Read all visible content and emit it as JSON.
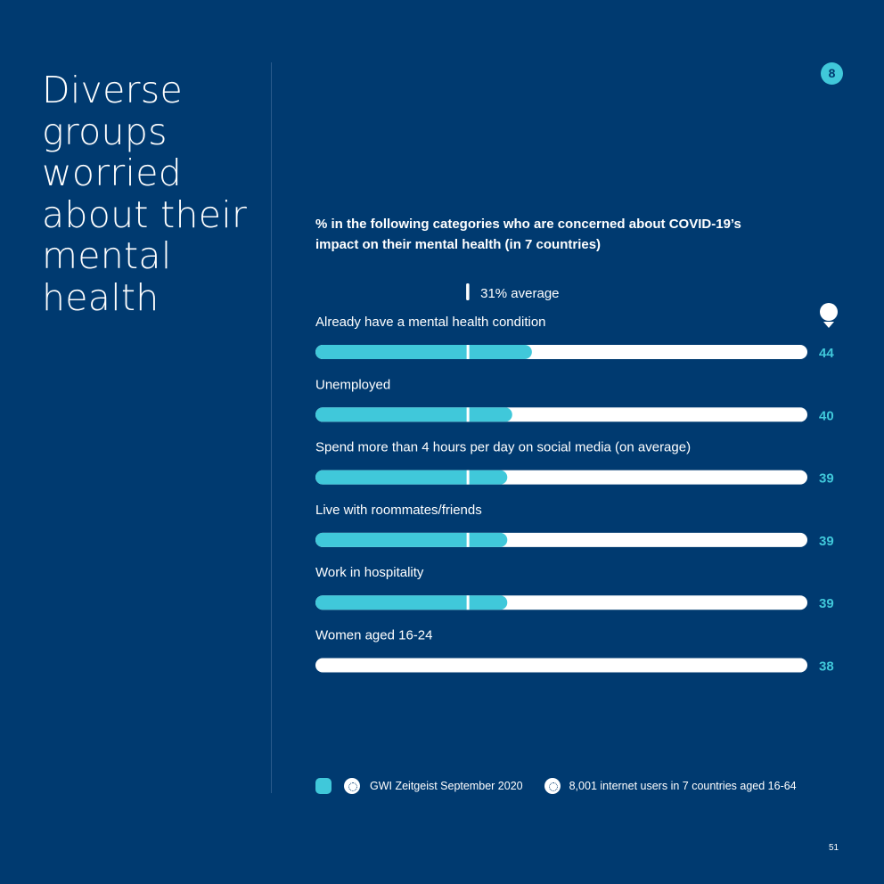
{
  "headline": [
    "Diverse",
    "groups",
    "worried",
    "about their",
    "mental",
    "health"
  ],
  "page_badge": "8",
  "chart_title": "% in the following categories who are concerned about COVID-19’s impact on their mental health (in 7 countries)",
  "average_label": "31% average",
  "chart_data": {
    "type": "bar",
    "orientation": "horizontal",
    "categories": [
      "Already have a mental health condition",
      "Unemployed",
      "Spend more than 4 hours per day on social media (on average)",
      "Live with roommates/friends",
      "Work in hospitality",
      "Women aged 16-24"
    ],
    "values": [
      44,
      40,
      39,
      39,
      39,
      38
    ],
    "average": 31,
    "xlim": [
      0,
      100
    ],
    "grid": false,
    "legend": "none",
    "colors": {
      "fill": "#40c8da",
      "track": "#ffffff",
      "value_label": "#40c8da",
      "average_marker": "#ffffff"
    }
  },
  "footer": {
    "source": "GWI Zeitgeist September 2020",
    "base": "8,001 internet users in 7 countries aged 16-64"
  },
  "page_number": "51"
}
